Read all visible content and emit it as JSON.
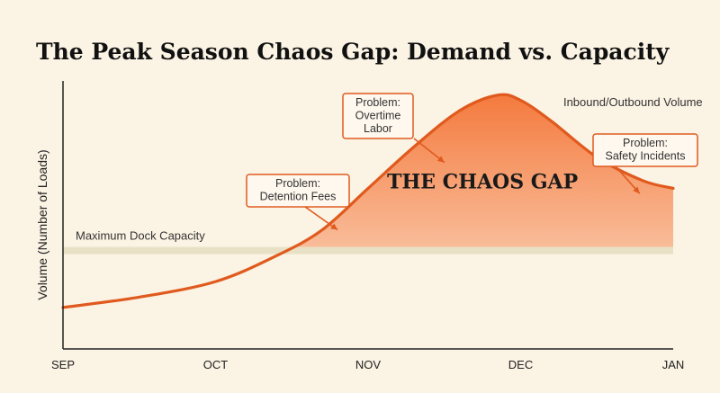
{
  "chart_data": {
    "type": "area",
    "title": "The Peak Season Chaos Gap: Demand vs. Capacity",
    "ylabel": "Volume (Number of Loads)",
    "xlabel": "",
    "x_ticks": [
      "SEP",
      "OCT",
      "NOV",
      "DEC",
      "JAN"
    ],
    "y_ticks": [],
    "xlim": [
      0,
      4
    ],
    "ylim": [
      0,
      100
    ],
    "capacity": {
      "name": "Maximum Dock Capacity",
      "value": 38
    },
    "series": [
      {
        "name": "Inbound/Outbound Volume",
        "x": [
          0,
          0.5,
          1.0,
          1.4,
          1.7,
          2.0,
          2.3,
          2.6,
          2.85,
          3.0,
          3.2,
          3.5,
          3.8,
          4.0
        ],
        "values": [
          16,
          20,
          26,
          36,
          46,
          62,
          78,
          92,
          98,
          96,
          88,
          74,
          65,
          62
        ]
      }
    ],
    "annotations": {
      "gap_label": "THE CHAOS GAP",
      "callouts": [
        {
          "lines": [
            "Problem:",
            "Detention Fees"
          ],
          "target_x": 1.8,
          "target_y": 46
        },
        {
          "lines": [
            "Problem:",
            "Overtime",
            "Labor"
          ],
          "target_x": 2.5,
          "target_y": 72
        },
        {
          "lines": [
            "Problem:",
            "Safety Incidents"
          ],
          "target_x": 3.78,
          "target_y": 60
        }
      ]
    },
    "colors": {
      "line": "#e05a1e",
      "fill_top": "#f47a3e",
      "fill_bottom": "#fbd6bd",
      "capacity_band": "#e9e1c6",
      "axis": "#222222"
    },
    "grid": false,
    "legend": "none"
  }
}
